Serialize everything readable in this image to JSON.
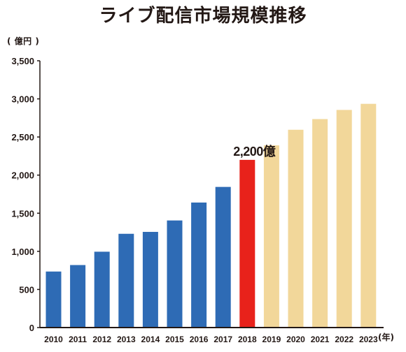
{
  "title": "ライブ配信市場規模推移",
  "y_unit": "( 億円 )",
  "x_unit": "(年)",
  "colors": {
    "actual": "#2e6bb5",
    "highlight": "#e8221b",
    "forecast": "#f2d79a",
    "axis": "#231815"
  },
  "chart_data": {
    "type": "bar",
    "categories": [
      "2010",
      "2011",
      "2012",
      "2013",
      "2014",
      "2015",
      "2016",
      "2017",
      "2018",
      "2019",
      "2020",
      "2021",
      "2022",
      "2023"
    ],
    "values": [
      735,
      820,
      995,
      1230,
      1255,
      1405,
      1640,
      1845,
      2200,
      2390,
      2595,
      2735,
      2855,
      2935
    ],
    "segment": [
      "actual",
      "actual",
      "actual",
      "actual",
      "actual",
      "actual",
      "actual",
      "actual",
      "highlight",
      "forecast",
      "forecast",
      "forecast",
      "forecast",
      "forecast"
    ],
    "ylim": [
      0,
      3500
    ],
    "yticks": [
      0,
      500,
      1000,
      1500,
      2000,
      2500,
      3000,
      3500
    ],
    "ytick_labels": [
      "0",
      "500",
      "1,000",
      "1,500",
      "2,000",
      "2,500",
      "3,000",
      "3,500"
    ],
    "annotations": [
      {
        "category": "2018",
        "text": "2,200億"
      }
    ],
    "grid": false,
    "legend": "none",
    "title": "ライブ配信市場規模推移",
    "ylabel": "( 億円 )",
    "xlabel": "(年)"
  }
}
